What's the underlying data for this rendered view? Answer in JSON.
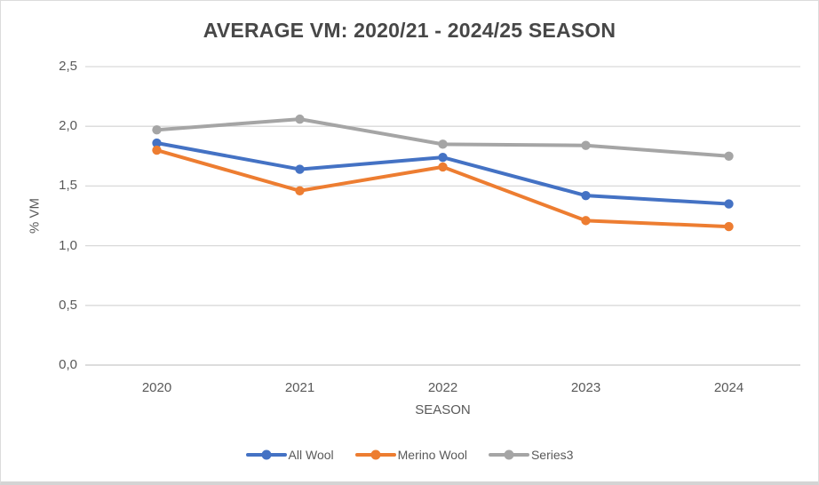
{
  "window": {
    "background": "#FFFFFF",
    "border_color": "#DCDCDC"
  },
  "chart_data": {
    "type": "line",
    "title": "AVERAGE VM: 2020/21 - 2024/25 SEASON",
    "xlabel": "SEASON",
    "ylabel": "% VM",
    "categories": [
      "2020",
      "2021",
      "2022",
      "2023",
      "2024"
    ],
    "series": [
      {
        "name": "All Wool",
        "color": "#4472C4",
        "values": [
          1.86,
          1.64,
          1.74,
          1.42,
          1.35
        ]
      },
      {
        "name": "Merino Wool",
        "color": "#ED7D31",
        "values": [
          1.8,
          1.46,
          1.66,
          1.21,
          1.16
        ]
      },
      {
        "name": "Series3",
        "color": "#A5A5A5",
        "values": [
          1.97,
          2.06,
          1.85,
          1.84,
          1.75
        ]
      }
    ],
    "ylim": [
      0,
      2.5
    ],
    "yticks": [
      {
        "value": 0,
        "label": "0,0"
      },
      {
        "value": 0.5,
        "label": "0,5"
      },
      {
        "value": 1,
        "label": "1,0"
      },
      {
        "value": 1.5,
        "label": "1,5"
      },
      {
        "value": 2,
        "label": "2,0"
      },
      {
        "value": 2.5,
        "label": "2,5"
      }
    ],
    "decimal_separator": ",",
    "grid": true,
    "legend_position": "bottom",
    "marker": "circle",
    "text_color": "#595959",
    "title_color": "#474747",
    "gridline_color": "#D9D9D9",
    "axis_line_color": "#C6C6C6"
  }
}
